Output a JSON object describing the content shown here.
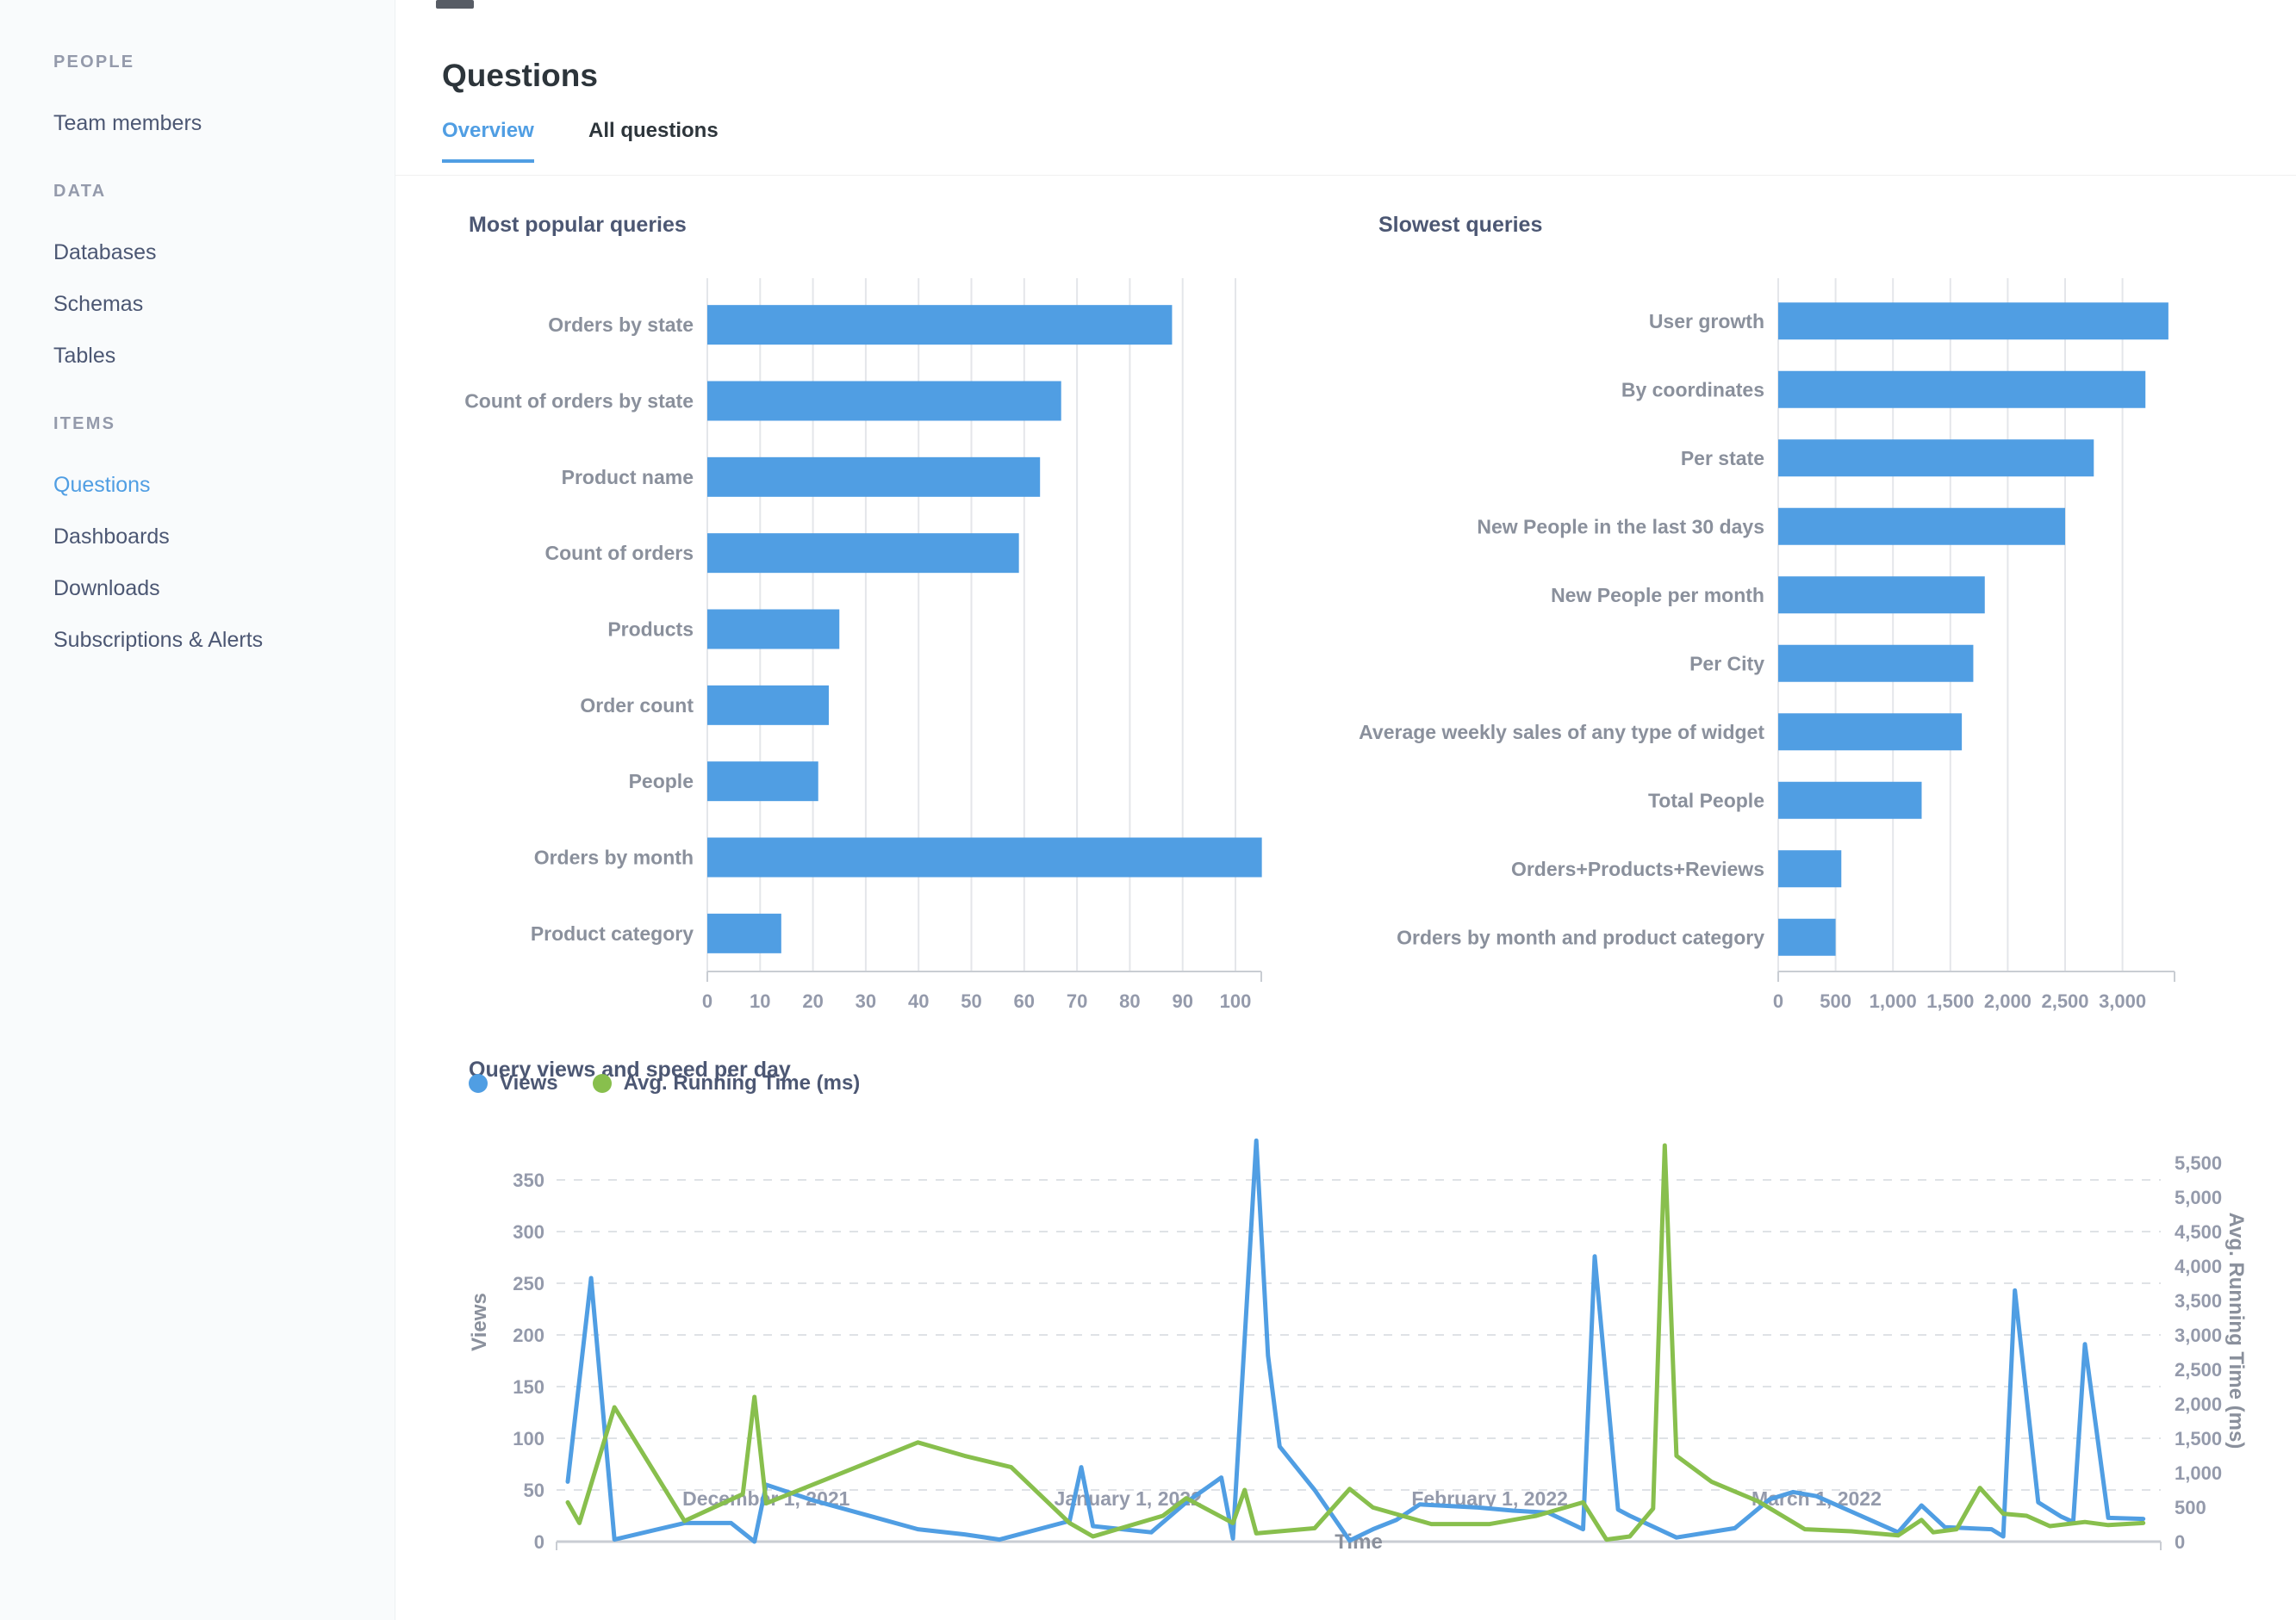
{
  "colors": {
    "accent": "#509EE3",
    "green": "#88BF4D",
    "dark_text": "#2D353B",
    "sidebar_text": "#4C5773",
    "muted_text": "#949AAB",
    "gridline": "#E4E6EA",
    "axis_line": "#C9CDD3"
  },
  "sidebar": {
    "sections": [
      {
        "label": "PEOPLE",
        "items": [
          {
            "label": "Team members",
            "active": false
          }
        ]
      },
      {
        "label": "DATA",
        "items": [
          {
            "label": "Databases",
            "active": false
          },
          {
            "label": "Schemas",
            "active": false
          },
          {
            "label": "Tables",
            "active": false
          }
        ]
      },
      {
        "label": "ITEMS",
        "items": [
          {
            "label": "Questions",
            "active": true
          },
          {
            "label": "Dashboards",
            "active": false
          },
          {
            "label": "Downloads",
            "active": false
          },
          {
            "label": "Subscriptions & Alerts",
            "active": false
          }
        ]
      }
    ]
  },
  "header": {
    "title": "Questions",
    "tabs": [
      {
        "label": "Overview",
        "active": true
      },
      {
        "label": "All questions",
        "active": false
      }
    ]
  },
  "chart_data": [
    {
      "type": "bar",
      "orientation": "horizontal",
      "title": "Most popular queries",
      "categories": [
        "Orders by state",
        "Count of orders by state",
        "Product name",
        "Count of orders",
        "Products",
        "Order count",
        "People",
        "Orders by month",
        "Product category"
      ],
      "values": [
        88,
        67,
        63,
        59,
        25,
        23,
        21,
        105,
        14
      ],
      "xlim": [
        0,
        105
      ],
      "grid": true,
      "bar_color": "#509EE3",
      "x_ticks": {
        "values": [
          0,
          10,
          20,
          30,
          40,
          50,
          60,
          70,
          80,
          90,
          100
        ],
        "labels": [
          "0",
          "10",
          "20",
          "30",
          "40",
          "50",
          "60",
          "70",
          "80",
          "90",
          "100"
        ]
      }
    },
    {
      "type": "bar",
      "orientation": "horizontal",
      "title": "Slowest queries",
      "categories": [
        "User growth",
        "By coordinates",
        "Per state",
        "New People in the last 30 days",
        "New People per month",
        "Per City",
        "Average weekly sales of any type of widget",
        "Total People",
        "Orders+Products+Reviews",
        "Orders by month and product category"
      ],
      "values": [
        3400,
        3200,
        2750,
        2500,
        1800,
        1700,
        1600,
        1250,
        550,
        500
      ],
      "xlim": [
        0,
        3450
      ],
      "grid": true,
      "bar_color": "#509EE3",
      "x_ticks": {
        "values": [
          0,
          500,
          1000,
          1500,
          2000,
          2500,
          3000
        ],
        "labels": [
          "0",
          "500",
          "1,000",
          "1,500",
          "2,000",
          "2,500",
          "3,000"
        ]
      }
    },
    {
      "type": "line",
      "title": "Query views and speed per day",
      "x_axis": {
        "title": "Time",
        "start": "2021-11-14",
        "end": "2022-03-31",
        "ticks": [
          {
            "date": "2021-12-01",
            "label": "December 1, 2021"
          },
          {
            "date": "2022-01-01",
            "label": "January 1, 2022"
          },
          {
            "date": "2022-02-01",
            "label": "February 1, 2022"
          },
          {
            "date": "2022-03-01",
            "label": "March 1, 2022"
          }
        ]
      },
      "left_axis": {
        "label": "Views",
        "ticks": [
          0,
          50,
          100,
          150,
          200,
          250,
          300,
          350
        ],
        "tick_labels": [
          "0",
          "50",
          "100",
          "150",
          "200",
          "250",
          "300",
          "350"
        ],
        "max": 395
      },
      "right_axis": {
        "label": "Avg. Running Time (ms)",
        "ticks": [
          0,
          500,
          1000,
          1500,
          2000,
          2500,
          3000,
          3500,
          4000,
          4500,
          5000,
          5500
        ],
        "tick_labels": [
          "0",
          "500",
          "1,000",
          "1,500",
          "2,000",
          "2,500",
          "3,000",
          "3,500",
          "4,000",
          "4,500",
          "5,000",
          "5,500"
        ],
        "max": 5930
      },
      "grid": "dashed-horizontal",
      "legend_position": "top-left",
      "series": [
        {
          "name": "Views",
          "color": "#509EE3",
          "axis": "left",
          "points": [
            [
              "2021-11-14",
              58
            ],
            [
              "2021-11-16",
              255
            ],
            [
              "2021-11-18",
              2
            ],
            [
              "2021-11-24",
              18
            ],
            [
              "2021-11-28",
              18
            ],
            [
              "2021-11-30",
              0
            ],
            [
              "2021-12-01",
              55
            ],
            [
              "2021-12-05",
              40
            ],
            [
              "2021-12-14",
              12
            ],
            [
              "2021-12-18",
              7
            ],
            [
              "2021-12-21",
              2
            ],
            [
              "2021-12-27",
              20
            ],
            [
              "2021-12-28",
              72
            ],
            [
              "2021-12-29",
              15
            ],
            [
              "2022-01-03",
              9
            ],
            [
              "2022-01-06",
              38
            ],
            [
              "2022-01-09",
              62
            ],
            [
              "2022-01-10",
              3
            ],
            [
              "2022-01-12",
              388
            ],
            [
              "2022-01-13",
              180
            ],
            [
              "2022-01-14",
              92
            ],
            [
              "2022-01-17",
              50
            ],
            [
              "2022-01-20",
              1
            ],
            [
              "2022-01-22",
              12
            ],
            [
              "2022-01-24",
              21
            ],
            [
              "2022-01-26",
              36
            ],
            [
              "2022-01-31",
              33
            ],
            [
              "2022-02-03",
              30
            ],
            [
              "2022-02-06",
              28
            ],
            [
              "2022-02-09",
              12
            ],
            [
              "2022-02-10",
              276
            ],
            [
              "2022-02-12",
              31
            ],
            [
              "2022-02-13",
              25
            ],
            [
              "2022-02-17",
              4
            ],
            [
              "2022-02-22",
              13
            ],
            [
              "2022-02-25",
              41
            ],
            [
              "2022-02-27",
              48
            ],
            [
              "2022-03-01",
              44
            ],
            [
              "2022-03-08",
              9
            ],
            [
              "2022-03-10",
              35
            ],
            [
              "2022-03-12",
              14
            ],
            [
              "2022-03-16",
              12
            ],
            [
              "2022-03-17",
              5
            ],
            [
              "2022-03-18",
              243
            ],
            [
              "2022-03-20",
              38
            ],
            [
              "2022-03-22",
              24
            ],
            [
              "2022-03-23",
              19
            ],
            [
              "2022-03-24",
              191
            ],
            [
              "2022-03-26",
              23
            ],
            [
              "2022-03-29",
              22
            ]
          ]
        },
        {
          "name": "Avg. Running Time (ms)",
          "color": "#88BF4D",
          "axis": "right",
          "points": [
            [
              "2021-11-14",
              570
            ],
            [
              "2021-11-15",
              270
            ],
            [
              "2021-11-18",
              1950
            ],
            [
              "2021-11-24",
              300
            ],
            [
              "2021-11-29",
              690
            ],
            [
              "2021-11-30",
              2100
            ],
            [
              "2021-12-01",
              555
            ],
            [
              "2021-12-14",
              1440
            ],
            [
              "2021-12-18",
              1245
            ],
            [
              "2021-12-22",
              1080
            ],
            [
              "2021-12-27",
              270
            ],
            [
              "2021-12-29",
              75
            ],
            [
              "2022-01-04",
              375
            ],
            [
              "2022-01-06",
              630
            ],
            [
              "2022-01-10",
              270
            ],
            [
              "2022-01-11",
              750
            ],
            [
              "2022-01-12",
              120
            ],
            [
              "2022-01-14",
              150
            ],
            [
              "2022-01-17",
              195
            ],
            [
              "2022-01-20",
              765
            ],
            [
              "2022-01-22",
              495
            ],
            [
              "2022-01-27",
              255
            ],
            [
              "2022-02-01",
              255
            ],
            [
              "2022-02-05",
              375
            ],
            [
              "2022-02-09",
              570
            ],
            [
              "2022-02-11",
              30
            ],
            [
              "2022-02-13",
              75
            ],
            [
              "2022-02-15",
              480
            ],
            [
              "2022-02-16",
              5750
            ],
            [
              "2022-02-17",
              1245
            ],
            [
              "2022-02-20",
              870
            ],
            [
              "2022-02-24",
              585
            ],
            [
              "2022-02-28",
              180
            ],
            [
              "2022-03-04",
              150
            ],
            [
              "2022-03-08",
              90
            ],
            [
              "2022-03-10",
              315
            ],
            [
              "2022-03-11",
              135
            ],
            [
              "2022-03-13",
              180
            ],
            [
              "2022-03-15",
              780
            ],
            [
              "2022-03-17",
              405
            ],
            [
              "2022-03-19",
              375
            ],
            [
              "2022-03-21",
              225
            ],
            [
              "2022-03-24",
              285
            ],
            [
              "2022-03-26",
              240
            ],
            [
              "2022-03-29",
              270
            ]
          ]
        }
      ]
    }
  ]
}
